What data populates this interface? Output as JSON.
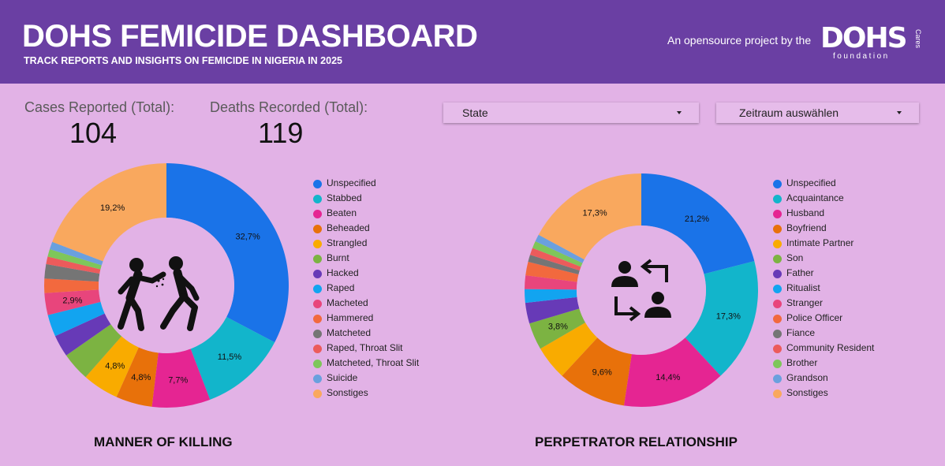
{
  "header": {
    "title": "DOHS FEMICIDE DASHBOARD",
    "subtitle": "TRACK REPORTS AND INSIGHTS ON FEMICIDE IN NIGERIA IN 2025",
    "byline": "An opensource project by the",
    "logo_text": "DOHS",
    "logo_sub": "foundation",
    "logo_cares": "Cares"
  },
  "kpis": {
    "cases_label": "Cases Reported (Total):",
    "cases_value": "104",
    "deaths_label": "Deaths Recorded (Total):",
    "deaths_value": "119"
  },
  "filters": {
    "state_label": "State",
    "period_label": "Zeitraum auswählen"
  },
  "colors": {
    "header_bg": "#6a3fa3",
    "page_bg": "#e2b2e6",
    "hole": "#e2b2e6"
  },
  "icons": {
    "manner_center": "violence-attack-icon",
    "perpetrator_center": "people-exchange-icon"
  },
  "chart_data": [
    {
      "type": "pie",
      "donut": true,
      "title": "MANNER OF KILLING",
      "legend_position": "right",
      "labels": [
        "Unspecified",
        "Stabbed",
        "Beaten",
        "Beheaded",
        "Strangled",
        "Burnt",
        "Hacked",
        "Raped",
        "Macheted",
        "Hammered",
        "Matcheted",
        "Raped, Throat Slit",
        "Matcheted, Throat Slit",
        "Suicide",
        "Sonstiges"
      ],
      "values": [
        32.7,
        11.5,
        7.7,
        4.8,
        4.8,
        3.8,
        2.9,
        2.9,
        2.9,
        1.9,
        1.9,
        1.0,
        1.0,
        1.0,
        19.2
      ],
      "data_labels": [
        "32,7%",
        "11,5%",
        "7,7%",
        "4,8%",
        "4,8%",
        "",
        "",
        "",
        "2,9%",
        "",
        "",
        "",
        "",
        "",
        "19,2%"
      ],
      "colors": [
        "#1a73e8",
        "#12b5cb",
        "#e52592",
        "#e8710a",
        "#f9ab00",
        "#7cb342",
        "#673ab7",
        "#12a4f0",
        "#e8457c",
        "#f2693e",
        "#757575",
        "#ec5b5b",
        "#7ec65a",
        "#6aa0de",
        "#f9a85e"
      ]
    },
    {
      "type": "pie",
      "donut": true,
      "title": "PERPETRATOR RELATIONSHIP",
      "legend_position": "right",
      "labels": [
        "Unspecified",
        "Acquaintance",
        "Husband",
        "Boyfriend",
        "Intimate Partner",
        "Son",
        "Father",
        "Ritualist",
        "Stranger",
        "Police Officer",
        "Fiance",
        "Community Resident",
        "Brother",
        "Grandson",
        "Sonstiges"
      ],
      "values": [
        21.2,
        17.3,
        14.4,
        9.6,
        4.8,
        3.8,
        2.9,
        1.9,
        1.9,
        1.9,
        1.0,
        1.0,
        1.0,
        1.0,
        17.3
      ],
      "data_labels": [
        "21,2%",
        "17,3%",
        "14,4%",
        "9,6%",
        "",
        "3,8%",
        "",
        "",
        "",
        "",
        "",
        "",
        "",
        "",
        "17,3%"
      ],
      "colors": [
        "#1a73e8",
        "#12b5cb",
        "#e52592",
        "#e8710a",
        "#f9ab00",
        "#7cb342",
        "#673ab7",
        "#12a4f0",
        "#e8457c",
        "#f2693e",
        "#757575",
        "#ec5b5b",
        "#7ec65a",
        "#6aa0de",
        "#f9a85e"
      ]
    }
  ]
}
